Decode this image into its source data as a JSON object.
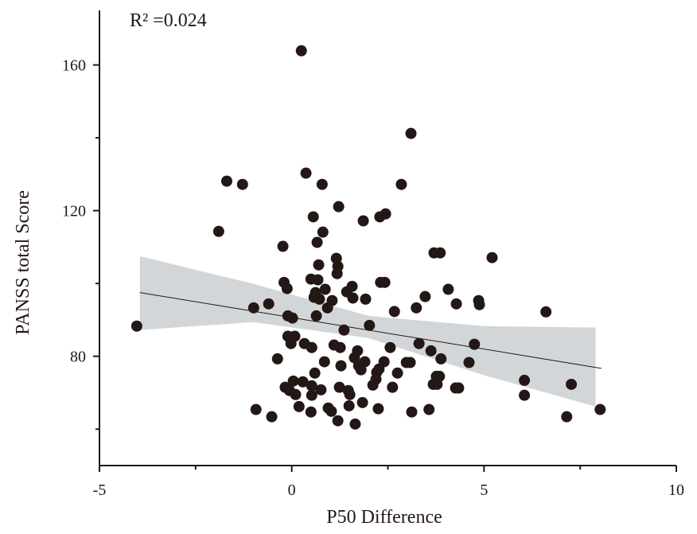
{
  "chart_data": {
    "type": "scatter",
    "annotation": "R² =0.024",
    "xlabel": "P50 Difference",
    "ylabel": "PANSS total Score",
    "xlim": [
      -5,
      10
    ],
    "ylim": [
      50,
      175
    ],
    "xticks": [
      -5,
      0,
      5,
      10
    ],
    "yticks": [
      80,
      120,
      160
    ],
    "xminor": [
      -2.5,
      2.5,
      7.5
    ],
    "yminor": [
      60,
      100,
      140
    ],
    "color": "#231815",
    "x": [
      -4.03,
      -1.9,
      -1.69,
      -1.28,
      -0.99,
      -0.93,
      -0.6,
      -0.52,
      -0.37,
      -0.23,
      -0.2,
      -0.12,
      -0.17,
      -0.1,
      -0.1,
      -0.06,
      -0.02,
      0.02,
      0.04,
      0.08,
      0.1,
      0.19,
      0.25,
      0.29,
      0.33,
      0.37,
      0.5,
      0.52,
      0.56,
      0.6,
      0.52,
      0.52,
      0.5,
      0.58,
      0.62,
      0.64,
      0.66,
      0.68,
      0.7,
      0.72,
      0.76,
      0.79,
      0.81,
      0.85,
      0.87,
      0.93,
      0.95,
      1.03,
      1.05,
      1.1,
      1.18,
      1.16,
      1.2,
      1.2,
      1.22,
      1.24,
      1.26,
      1.28,
      1.36,
      1.43,
      1.47,
      1.49,
      1.51,
      1.57,
      1.59,
      1.63,
      1.65,
      1.71,
      1.74,
      1.8,
      1.84,
      1.86,
      1.9,
      1.92,
      2.02,
      2.11,
      2.19,
      2.21,
      2.25,
      2.27,
      2.29,
      2.31,
      2.4,
      2.44,
      2.42,
      2.56,
      2.62,
      2.67,
      2.75,
      2.85,
      2.98,
      3.08,
      3.1,
      3.12,
      3.24,
      3.31,
      3.47,
      3.57,
      3.62,
      3.7,
      3.76,
      3.68,
      3.78,
      3.84,
      3.86,
      3.88,
      4.07,
      4.26,
      4.28,
      4.34,
      4.61,
      4.75,
      4.86,
      4.88,
      5.21,
      6.05,
      6.05,
      6.61,
      7.15,
      7.27,
      8.02
    ],
    "values": [
      88.3,
      114.3,
      128.1,
      127.2,
      93.3,
      65.4,
      94.4,
      63.4,
      79.3,
      110.2,
      100.3,
      98.6,
      71.5,
      91.1,
      85.5,
      70.6,
      83.5,
      90.5,
      73.2,
      85.5,
      69.5,
      66.2,
      163.9,
      73,
      83.5,
      130.3,
      101.2,
      82.4,
      118.3,
      75.4,
      71.9,
      69.3,
      64.7,
      96.2,
      97.5,
      91.1,
      111.3,
      101,
      105.1,
      95.7,
      70.8,
      127.2,
      114.1,
      78.5,
      98.4,
      93.3,
      65.8,
      64.9,
      95.3,
      83.1,
      102.7,
      106.9,
      104.7,
      62.3,
      121.1,
      71.5,
      82.4,
      77.4,
      87.2,
      97.7,
      70.6,
      66.4,
      69.5,
      99.2,
      96,
      79.6,
      61.4,
      81.5,
      77.4,
      76.3,
      67.3,
      117.2,
      78.5,
      95.7,
      88.5,
      72.1,
      73.7,
      75.6,
      65.6,
      76.5,
      118.3,
      100.3,
      78.5,
      119.1,
      100.3,
      82.4,
      71.5,
      92.3,
      75.4,
      127.2,
      78.3,
      78.3,
      141.2,
      64.7,
      93.3,
      83.5,
      96.4,
      65.4,
      81.5,
      108.4,
      74.5,
      72.3,
      72.3,
      74.5,
      108.4,
      79.3,
      98.4,
      71.3,
      94.4,
      71.3,
      78.3,
      83.3,
      95.3,
      94.2,
      107.1,
      73.4,
      69.3,
      92.2,
      63.4,
      72.3,
      65.4
    ],
    "fit": {
      "color": "#231815",
      "x": [
        -3.95,
        8.05
      ],
      "y": [
        97.5,
        76.7
      ]
    },
    "band": {
      "color": "#d3d6d8",
      "x": [
        -3.95,
        -1,
        2,
        5,
        7.9
      ],
      "upper": [
        107.5,
        99.9,
        91.1,
        88.3,
        87.9
      ],
      "lower": [
        87.2,
        89.4,
        85,
        74.8,
        66.2
      ]
    }
  }
}
